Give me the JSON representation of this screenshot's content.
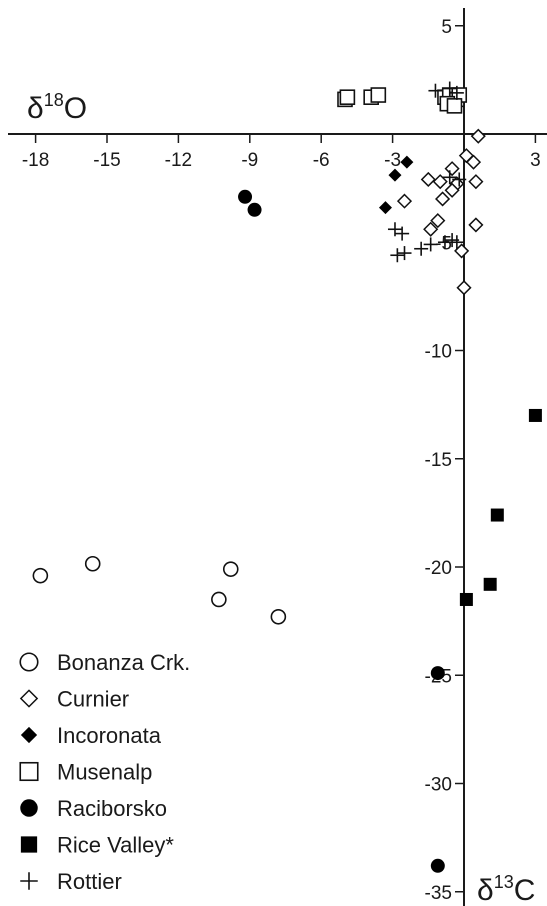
{
  "chart_data": {
    "type": "scatter",
    "title": "",
    "xlabel": "δ18O",
    "ylabel": "δ13C",
    "xlabel_parts": [
      "δ",
      "18",
      "O"
    ],
    "ylabel_parts": [
      "δ",
      "13",
      "C"
    ],
    "xlim": [
      -19,
      3.5
    ],
    "ylim": [
      -35.5,
      7.5
    ],
    "x_ticks": [
      -18,
      -15,
      -12,
      -9,
      -6,
      -3,
      0,
      3
    ],
    "x_tick_labels": [
      "-18",
      "-15",
      "-12",
      "-9",
      "-6",
      "-3",
      "",
      "3"
    ],
    "y_ticks": [
      5,
      -5,
      -10,
      -15,
      -20,
      -25,
      -30,
      -35
    ],
    "y_tick_labels": [
      "5",
      "-5",
      "-10",
      "-15",
      "-20",
      "-25",
      "-30",
      "-35"
    ],
    "axes_cross_at": [
      0,
      0
    ],
    "grid": false,
    "legend_position": "bottom-left",
    "series": [
      {
        "name": "Bonanza Crk.",
        "marker": "circle-open",
        "points": [
          [
            -17.8,
            -20.4
          ],
          [
            -15.6,
            -19.85
          ],
          [
            -10.3,
            -21.5
          ],
          [
            -9.8,
            -20.1
          ],
          [
            -7.8,
            -22.3
          ]
        ]
      },
      {
        "name": "Curnier",
        "marker": "diamond-open",
        "points": [
          [
            0.6,
            -0.1
          ],
          [
            0.1,
            -1.0
          ],
          [
            0.4,
            -1.3
          ],
          [
            -0.5,
            -1.6
          ],
          [
            -1.0,
            -2.2
          ],
          [
            -1.5,
            -2.1
          ],
          [
            -0.3,
            -2.3
          ],
          [
            0.5,
            -2.2
          ],
          [
            -0.5,
            -2.6
          ],
          [
            -0.9,
            -3.0
          ],
          [
            -2.5,
            -3.1
          ],
          [
            0.5,
            -4.2
          ],
          [
            -1.1,
            -4.0
          ],
          [
            -1.4,
            -4.4
          ],
          [
            -0.1,
            -5.4
          ],
          [
            0.0,
            -7.1
          ]
        ]
      },
      {
        "name": "Incoronata",
        "marker": "diamond-filled",
        "points": [
          [
            -2.4,
            -1.3
          ],
          [
            -2.9,
            -1.9
          ],
          [
            -3.3,
            -3.4
          ]
        ]
      },
      {
        "name": "Musenalp",
        "marker": "square-open",
        "points": [
          [
            -5.0,
            1.6
          ],
          [
            -4.9,
            1.7
          ],
          [
            -3.9,
            1.7
          ],
          [
            -3.6,
            1.8
          ],
          [
            -0.8,
            1.7
          ],
          [
            -0.6,
            1.8
          ],
          [
            -0.3,
            1.6
          ],
          [
            -0.2,
            1.8
          ],
          [
            -0.7,
            1.4
          ],
          [
            -0.4,
            1.3
          ]
        ]
      },
      {
        "name": "Raciborsko",
        "marker": "circle-filled",
        "points": [
          [
            -9.2,
            -2.9
          ],
          [
            -8.8,
            -3.5
          ],
          [
            -1.1,
            -24.9
          ],
          [
            -1.1,
            -33.8
          ]
        ]
      },
      {
        "name": "Rice Valley*",
        "marker": "square-filled",
        "points": [
          [
            3.0,
            -13.0
          ],
          [
            1.4,
            -17.6
          ],
          [
            1.1,
            -20.8
          ],
          [
            0.1,
            -21.5
          ]
        ]
      },
      {
        "name": "Rottier",
        "marker": "cross",
        "points": [
          [
            -1.2,
            2.0
          ],
          [
            -0.6,
            2.1
          ],
          [
            -0.3,
            1.9
          ],
          [
            -2.9,
            -4.4
          ],
          [
            -2.6,
            -4.6
          ],
          [
            -2.8,
            -5.6
          ],
          [
            -2.5,
            -5.5
          ],
          [
            -1.8,
            -5.3
          ],
          [
            -1.4,
            -5.1
          ],
          [
            -0.8,
            -5.0
          ],
          [
            -0.3,
            -5.0
          ],
          [
            -0.5,
            -4.9
          ],
          [
            -0.2,
            -2.1
          ],
          [
            -0.6,
            -2.0
          ]
        ]
      }
    ]
  }
}
